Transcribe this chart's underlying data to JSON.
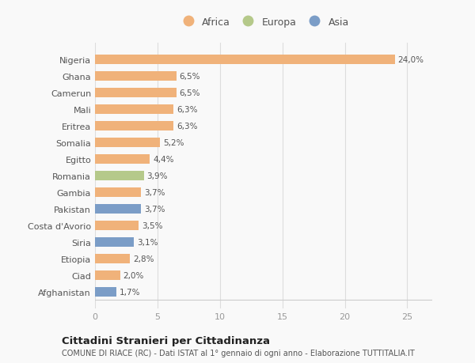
{
  "categories": [
    "Nigeria",
    "Ghana",
    "Camerun",
    "Mali",
    "Eritrea",
    "Somalia",
    "Egitto",
    "Romania",
    "Gambia",
    "Pakistan",
    "Costa d'Avorio",
    "Siria",
    "Etiopia",
    "Ciad",
    "Afghanistan"
  ],
  "values": [
    24.0,
    6.5,
    6.5,
    6.3,
    6.3,
    5.2,
    4.4,
    3.9,
    3.7,
    3.7,
    3.5,
    3.1,
    2.8,
    2.0,
    1.7
  ],
  "labels": [
    "24,0%",
    "6,5%",
    "6,5%",
    "6,3%",
    "6,3%",
    "5,2%",
    "4,4%",
    "3,9%",
    "3,7%",
    "3,7%",
    "3,5%",
    "3,1%",
    "2,8%",
    "2,0%",
    "1,7%"
  ],
  "bar_colors": [
    "#f0b27a",
    "#f0b27a",
    "#f0b27a",
    "#f0b27a",
    "#f0b27a",
    "#f0b27a",
    "#f0b27a",
    "#b5c98a",
    "#f0b27a",
    "#7b9dc7",
    "#f0b27a",
    "#7b9dc7",
    "#f0b27a",
    "#f0b27a",
    "#7b9dc7"
  ],
  "africa_color": "#f0b27a",
  "europa_color": "#b5c98a",
  "asia_color": "#7b9dc7",
  "xlim": [
    0,
    27
  ],
  "xticks": [
    0,
    5,
    10,
    15,
    20,
    25
  ],
  "title": "Cittadini Stranieri per Cittadinanza",
  "subtitle": "COMUNE DI RIACE (RC) - Dati ISTAT al 1° gennaio di ogni anno - Elaborazione TUTTITALIA.IT",
  "bg_color": "#f9f9f9",
  "legend_labels": [
    "Africa",
    "Europa",
    "Asia"
  ]
}
